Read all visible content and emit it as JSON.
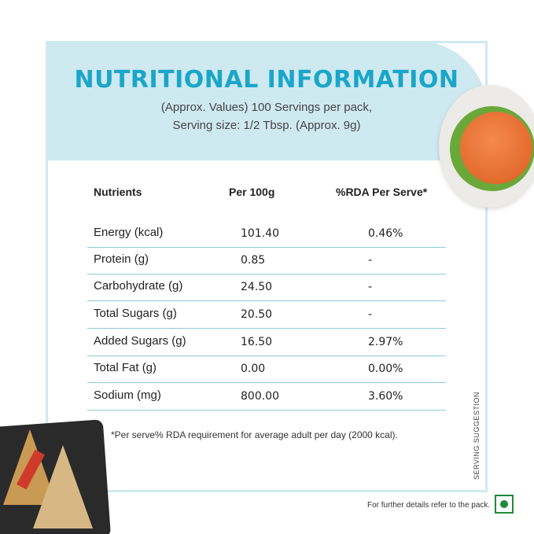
{
  "header": {
    "title": "NUTRITIONAL INFORMATION",
    "subtitle_line1": "(Approx. Values) 100 Servings per pack,",
    "subtitle_line2": "Serving size: 1/2 Tbsp. (Approx. 9g)"
  },
  "table": {
    "columns": [
      "Nutrients",
      "Per 100g",
      "%RDA Per Serve*"
    ],
    "rows": [
      {
        "nutrient": "Energy (kcal)",
        "per_100g": "101.40",
        "rda": "0.46%"
      },
      {
        "nutrient": "Protein (g)",
        "per_100g": "0.85",
        "rda": "-"
      },
      {
        "nutrient": "Carbohydrate (g)",
        "per_100g": "24.50",
        "rda": "-"
      },
      {
        "nutrient": "Total Sugars (g)",
        "per_100g": "20.50",
        "rda": "-"
      },
      {
        "nutrient": "Added Sugars (g)",
        "per_100g": "16.50",
        "rda": "2.97%"
      },
      {
        "nutrient": "Total Fat (g)",
        "per_100g": "0.00",
        "rda": "0.00%"
      },
      {
        "nutrient": "Sodium (mg)",
        "per_100g": "800.00",
        "rda": "3.60%"
      }
    ]
  },
  "footnote": "*Per serve% RDA requirement for average adult per day (2000 kcal).",
  "serving_suggestion": "SERVING SUGGESTION",
  "pack_note": "For further details refer to the pack.",
  "colors": {
    "accent": "#1aa6c9",
    "header_bg": "#cfe9f1",
    "row_line": "#8dc9db",
    "veg_green": "#1e8a3a"
  },
  "icons": {
    "veg_mark": "veg-symbol-icon",
    "burger": "burger-image",
    "sandwich": "sandwich-image"
  }
}
